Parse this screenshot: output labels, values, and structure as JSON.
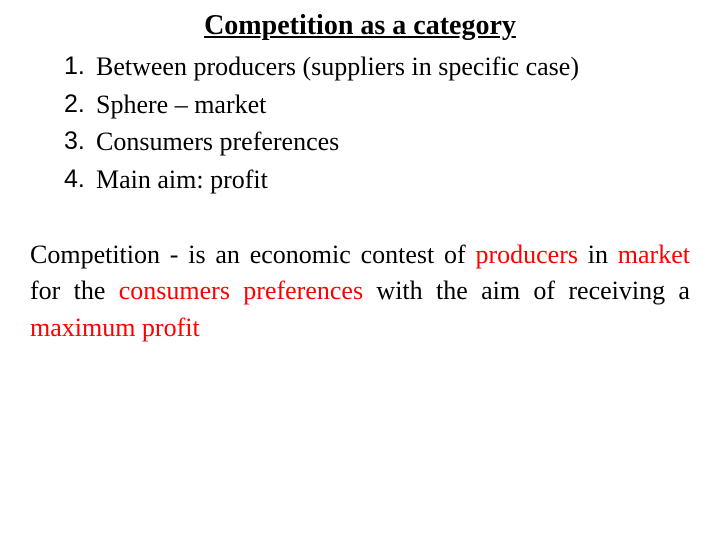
{
  "title": "Competition as a category",
  "list": {
    "items": [
      {
        "num": "1.",
        "text": "Between producers (suppliers in specific case)"
      },
      {
        "num": "2.",
        "text": "Sphere – market"
      },
      {
        "num": "3.",
        "text": "Consumers preferences"
      },
      {
        "num": "4.",
        "text": "Main aim: profit"
      }
    ]
  },
  "definition": {
    "t1": "Competition - is an economic contest of ",
    "h1": "producers",
    "t2": " in ",
    "h2": "market",
    "t3": " for the ",
    "h3": "consumers preferences",
    "t4": " with the aim of receiving a ",
    "h4": "maximum profit"
  },
  "colors": {
    "highlight": "#ff0000",
    "text": "#000000",
    "background": "#ffffff"
  },
  "typography": {
    "title_fontsize": 28,
    "body_fontsize": 26,
    "font_family": "Times New Roman"
  }
}
